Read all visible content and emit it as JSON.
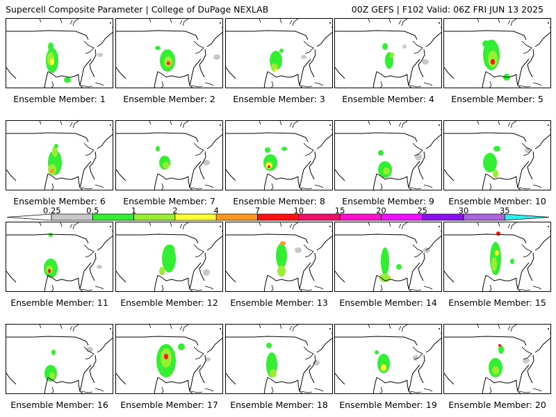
{
  "header": {
    "title": "Supercell Composite Parameter | College of DuPage NEXLAB",
    "run_info": "00Z GEFS | F102 Valid: 06Z FRI JUN 13 2025"
  },
  "members": [
    {
      "label": "Ensemble Member: 1"
    },
    {
      "label": "Ensemble Member: 2"
    },
    {
      "label": "Ensemble Member: 3"
    },
    {
      "label": "Ensemble Member: 4"
    },
    {
      "label": "Ensemble Member: 5"
    },
    {
      "label": "Ensemble Member: 6"
    },
    {
      "label": "Ensemble Member: 7"
    },
    {
      "label": "Ensemble Member: 8"
    },
    {
      "label": "Ensemble Member: 9"
    },
    {
      "label": "Ensemble Member: 10"
    },
    {
      "label": "Ensemble Member: 11"
    },
    {
      "label": "Ensemble Member: 12"
    },
    {
      "label": "Ensemble Member: 13"
    },
    {
      "label": "Ensemble Member: 14"
    },
    {
      "label": "Ensemble Member: 15"
    },
    {
      "label": "Ensemble Member: 16"
    },
    {
      "label": "Ensemble Member: 17"
    },
    {
      "label": "Ensemble Member: 18"
    },
    {
      "label": "Ensemble Member: 19"
    },
    {
      "label": "Ensemble Member: 20"
    }
  ],
  "colorbar": {
    "levels": [
      "0.25",
      "0.5",
      "1",
      "2",
      "4",
      "7",
      "10",
      "15",
      "20",
      "25",
      "30",
      "35"
    ],
    "colors": [
      "#ffffff",
      "#c8c8c8",
      "#33ee33",
      "#99ee33",
      "#ffff33",
      "#ff9922",
      "#ff1111",
      "#ee1166",
      "#ff11cc",
      "#ee11ff",
      "#8811ee",
      "#aa66dd",
      "#33eeee"
    ]
  },
  "colors": {
    "background": "#ffffff",
    "map_lines": "#000000"
  }
}
